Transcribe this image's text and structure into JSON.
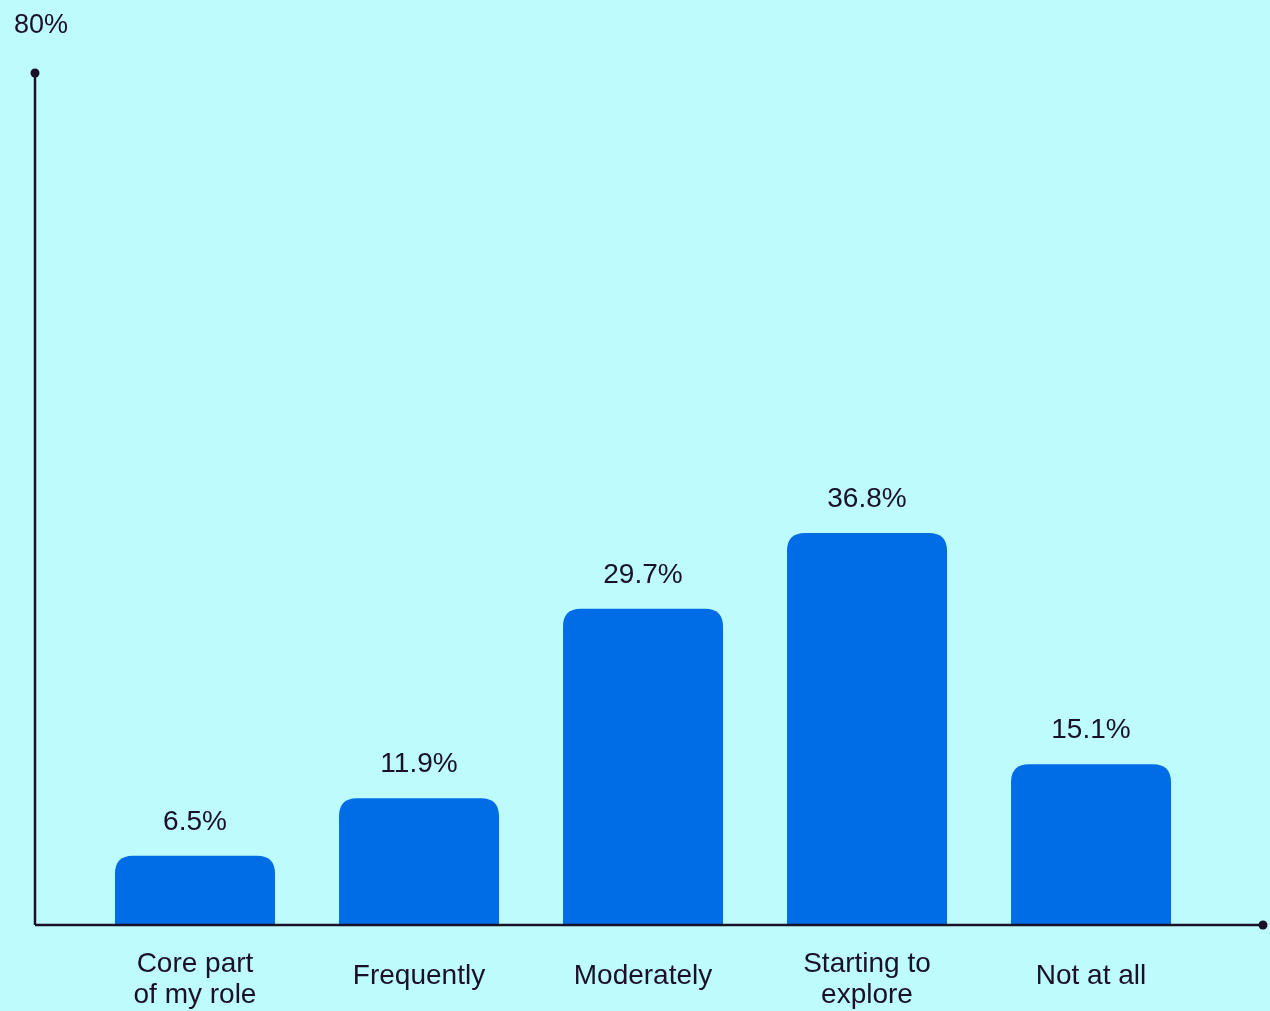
{
  "chart_data": {
    "type": "bar",
    "categories": [
      "Core part of my role",
      "Frequently",
      "Moderately",
      "Starting to explore",
      "Not at all"
    ],
    "values": [
      6.5,
      11.9,
      29.7,
      36.8,
      15.1
    ],
    "value_labels": [
      "6.5%",
      "11.9%",
      "29.7%",
      "36.8%",
      "15.1%"
    ],
    "color": "#006ce6",
    "ylim": [
      0,
      80
    ],
    "annotations": [
      "80%"
    ]
  }
}
